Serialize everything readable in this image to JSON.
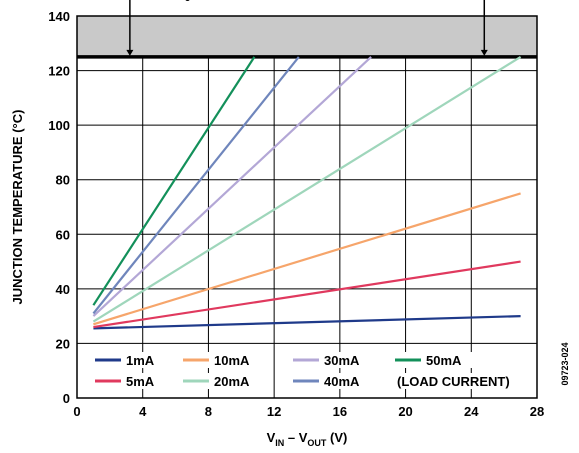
{
  "chart_data": {
    "type": "line",
    "xlabel": {
      "main": "V",
      "sub1": "IN",
      "mid": " – V",
      "sub2": "OUT",
      "end": " (V)"
    },
    "ylabel": "JUNCTION TEMPERATURE (°C)",
    "xlim": [
      0,
      28
    ],
    "ylim": [
      0,
      140
    ],
    "x_ticks": [
      "0",
      "4",
      "8",
      "12",
      "16",
      "20",
      "24",
      "28"
    ],
    "y_ticks": [
      "0",
      "20",
      "40",
      "60",
      "80",
      "100",
      "120",
      "140"
    ],
    "grid": true,
    "limit_band": {
      "y_from": 125,
      "y_to": 140,
      "label_main": "MAX T",
      "label_sub": "J",
      "label_rest": " (DO NOT OPERATE ABOVE THIS POINT)"
    },
    "legend_note": "(LOAD CURRENT)",
    "figure_id": "09723-024",
    "series": [
      {
        "name": "1mA",
        "color": "#1f3a8a",
        "x": [
          1,
          27
        ],
        "y": [
          25.5,
          30
        ]
      },
      {
        "name": "5mA",
        "color": "#e0395e",
        "x": [
          1,
          27
        ],
        "y": [
          26,
          50
        ]
      },
      {
        "name": "10mA",
        "color": "#f6a56b",
        "x": [
          1,
          27
        ],
        "y": [
          27,
          75
        ]
      },
      {
        "name": "20mA",
        "color": "#9fd6bb",
        "x": [
          1,
          27
        ],
        "y": [
          28,
          125
        ]
      },
      {
        "name": "30mA",
        "color": "#b3a7d6",
        "x": [
          1,
          17.9
        ],
        "y": [
          30,
          125
        ]
      },
      {
        "name": "40mA",
        "color": "#6f86bc",
        "x": [
          1,
          13.5
        ],
        "y": [
          31,
          125
        ]
      },
      {
        "name": "50mA",
        "color": "#13905a",
        "x": [
          1,
          10.8
        ],
        "y": [
          34,
          125
        ]
      }
    ],
    "legend_layout": [
      [
        "1mA",
        "10mA",
        "30mA",
        "50mA"
      ],
      [
        "5mA",
        "20mA",
        "40mA"
      ]
    ]
  }
}
